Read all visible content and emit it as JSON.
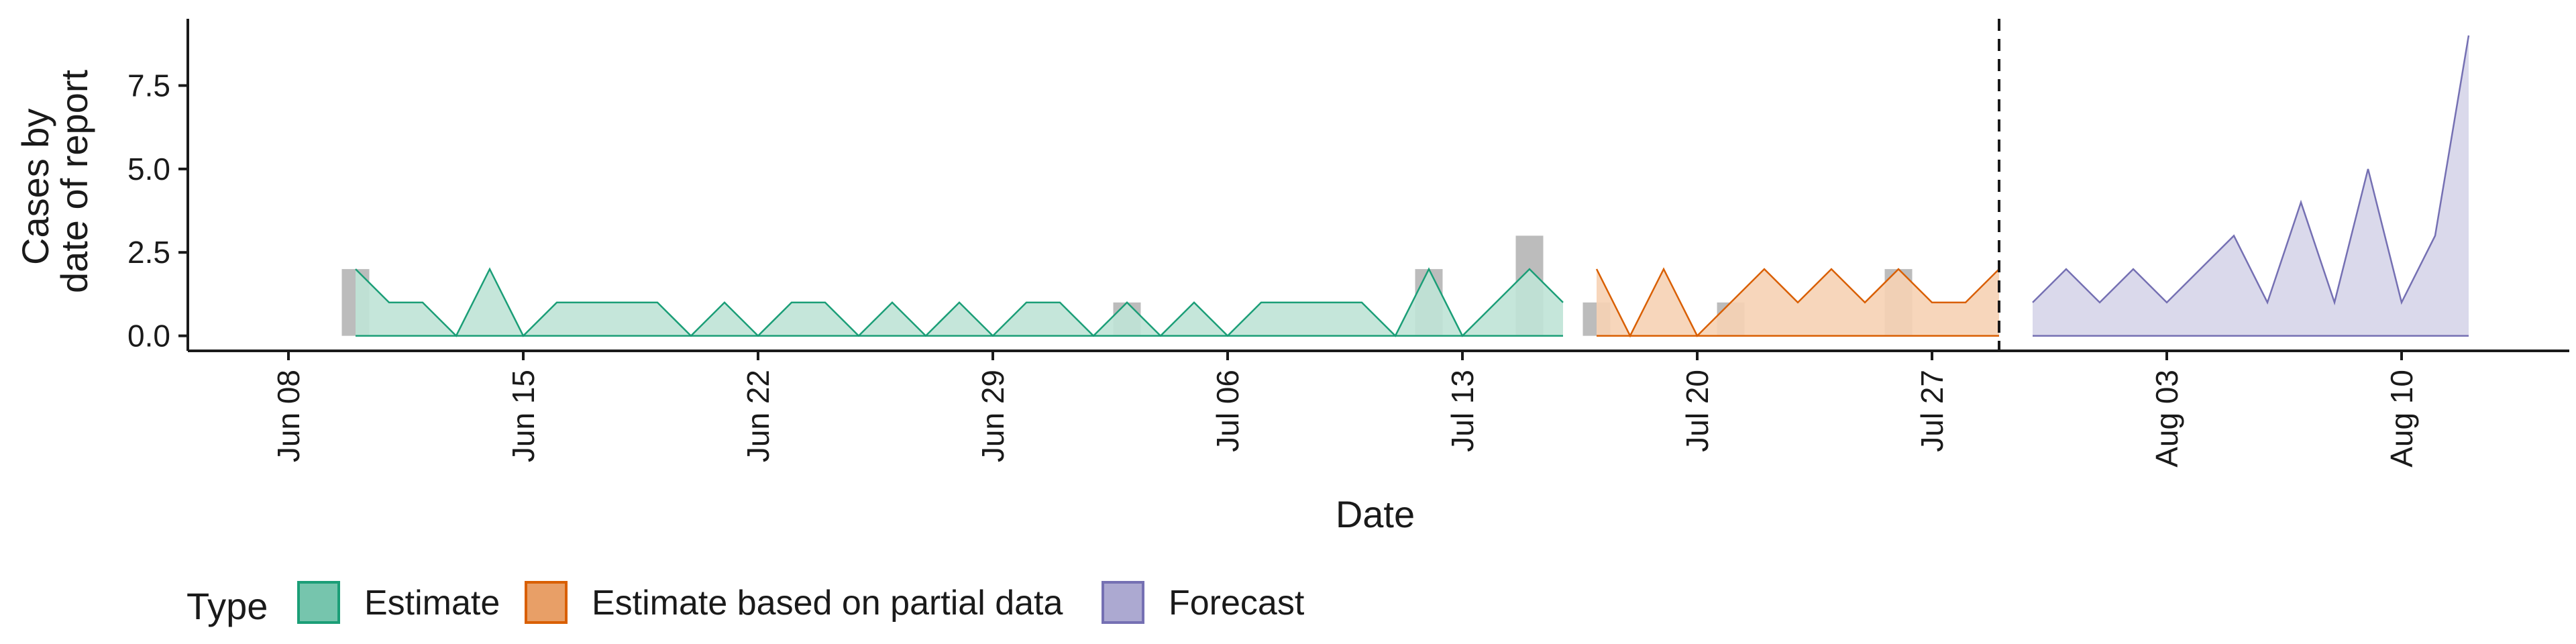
{
  "chart_data": {
    "type": "area",
    "xlabel": "Date",
    "ylabel_lines": [
      "Cases by",
      "date of report"
    ],
    "x_ticks": [
      "2020-06-08",
      "2020-06-15",
      "2020-06-22",
      "2020-06-29",
      "2020-07-06",
      "2020-07-13",
      "2020-07-20",
      "2020-07-27",
      "2020-08-03",
      "2020-08-10"
    ],
    "x_tick_labels": [
      "Jun 08",
      "Jun 15",
      "Jun 22",
      "Jun 29",
      "Jul 06",
      "Jul 13",
      "Jul 20",
      "Jul 27",
      "Aug 03",
      "Aug 10"
    ],
    "xlim": [
      "2020-06-05",
      "2020-08-15"
    ],
    "y_ticks": [
      0,
      2.5,
      5,
      7.5
    ],
    "y_tick_labels": [
      "0.0",
      "2.5",
      "5.0",
      "7.5"
    ],
    "ylim": [
      -0.45,
      9.5
    ],
    "forecast_start_date": "2020-07-29",
    "legend": {
      "title": "Type",
      "position": "bottom"
    },
    "series": [
      {
        "name": "Estimate",
        "color": "#1b9e77",
        "fill": "#bfe3d6",
        "x": [
          "2020-06-10",
          "2020-06-11",
          "2020-06-12",
          "2020-06-13",
          "2020-06-14",
          "2020-06-15",
          "2020-06-16",
          "2020-06-17",
          "2020-06-18",
          "2020-06-19",
          "2020-06-20",
          "2020-06-21",
          "2020-06-22",
          "2020-06-23",
          "2020-06-24",
          "2020-06-25",
          "2020-06-26",
          "2020-06-27",
          "2020-06-28",
          "2020-06-29",
          "2020-06-30",
          "2020-07-01",
          "2020-07-02",
          "2020-07-03",
          "2020-07-04",
          "2020-07-05",
          "2020-07-06",
          "2020-07-07",
          "2020-07-08",
          "2020-07-09",
          "2020-07-10",
          "2020-07-11",
          "2020-07-12",
          "2020-07-13",
          "2020-07-14",
          "2020-07-15",
          "2020-07-16"
        ],
        "values": [
          2,
          1,
          1,
          0,
          2,
          0,
          1,
          1,
          1,
          1,
          0,
          1,
          0,
          1,
          1,
          0,
          1,
          0,
          1,
          0,
          1,
          1,
          0,
          1,
          0,
          1,
          0,
          1,
          1,
          1,
          1,
          0,
          2,
          0,
          1,
          2,
          1
        ]
      },
      {
        "name": "Estimate based on partial data",
        "color": "#d95f02",
        "fill": "#f6d1b4",
        "x": [
          "2020-07-17",
          "2020-07-18",
          "2020-07-19",
          "2020-07-20",
          "2020-07-21",
          "2020-07-22",
          "2020-07-23",
          "2020-07-24",
          "2020-07-25",
          "2020-07-26",
          "2020-07-27",
          "2020-07-28",
          "2020-07-29"
        ],
        "values": [
          2,
          0,
          2,
          0,
          1,
          2,
          1,
          2,
          1,
          2,
          1,
          1,
          2
        ]
      },
      {
        "name": "Forecast",
        "color": "#7570b3",
        "fill": "#d6d5e9",
        "x": [
          "2020-07-30",
          "2020-07-31",
          "2020-08-01",
          "2020-08-02",
          "2020-08-03",
          "2020-08-04",
          "2020-08-05",
          "2020-08-06",
          "2020-08-07",
          "2020-08-08",
          "2020-08-09",
          "2020-08-10",
          "2020-08-11",
          "2020-08-12"
        ],
        "values": [
          1,
          2,
          1,
          2,
          1,
          2,
          3,
          1,
          4,
          1,
          5,
          1,
          3,
          9
        ]
      }
    ],
    "observed_bars": {
      "color": "#a6a6a6",
      "x": [
        "2020-06-10",
        "2020-07-03",
        "2020-07-12",
        "2020-07-15",
        "2020-07-17",
        "2020-07-21",
        "2020-07-26"
      ],
      "values": [
        2,
        1,
        2,
        3,
        1,
        1,
        2
      ]
    }
  }
}
